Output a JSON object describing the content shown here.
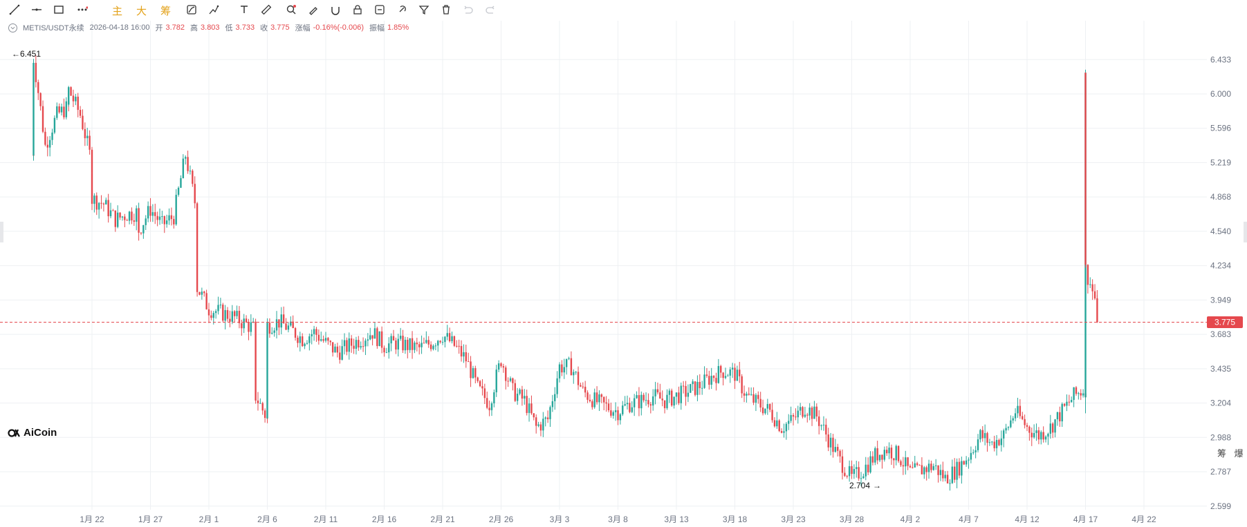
{
  "toolbar": {
    "text_buttons": [
      "主",
      "大",
      "筹"
    ]
  },
  "info": {
    "symbol": "METIS/USDT永续",
    "datetime": "2026-04-18 16:00",
    "open_label": "开",
    "open": "3.782",
    "high_label": "高",
    "high": "3.803",
    "low_label": "低",
    "low": "3.733",
    "close_label": "收",
    "close": "3.775",
    "change_label": "涨幅",
    "change": "-0.16%(-0.006)",
    "amp_label": "振幅",
    "amp": "1.85%"
  },
  "colors": {
    "up": "#26a69a",
    "down": "#e5484d",
    "price_line": "#e5484d",
    "grid": "#eef0f3"
  },
  "logo": {
    "text": "AiCoin"
  },
  "bottom_right": "筹 爆",
  "chart_data": {
    "type": "candlestick",
    "symbol": "METIS/USDT永续",
    "y_ticks": [
      6.433,
      6.0,
      5.596,
      5.219,
      4.868,
      4.54,
      4.234,
      3.949,
      3.683,
      3.435,
      3.204,
      2.988,
      2.787,
      2.599
    ],
    "y_tick_labels": [
      "6.433",
      "6.000",
      "5.596",
      "5.219",
      "4.868",
      "4.540",
      "4.234",
      "3.949",
      "3.683",
      "3.435",
      "3.204",
      "2.988",
      "2.787",
      "2.599"
    ],
    "y_scale": "log",
    "ylim": [
      2.58,
      6.6
    ],
    "x_tick_labels": [
      "1月 22",
      "1月 27",
      "2月 1",
      "2月 6",
      "2月 11",
      "2月 16",
      "2月 21",
      "2月 26",
      "3月 3",
      "3月 8",
      "3月 13",
      "3月 18",
      "3月 23",
      "3月 28",
      "4月 2",
      "4月 7",
      "4月 12",
      "4月 17",
      "4月 22"
    ],
    "last_price": "3.775",
    "max_label": "6.451",
    "min_label": "2.704",
    "path": [
      [
        "01-17",
        5.3
      ],
      [
        "01-17",
        6.45
      ],
      [
        "01-18",
        5.4
      ],
      [
        "01-19",
        5.75
      ],
      [
        "01-20",
        5.85
      ],
      [
        "01-20",
        6.05
      ],
      [
        "01-21",
        5.75
      ],
      [
        "01-22",
        5.2
      ],
      [
        "01-22",
        4.85
      ],
      [
        "01-23",
        4.8
      ],
      [
        "01-24",
        4.65
      ],
      [
        "01-25",
        4.7
      ],
      [
        "01-26",
        4.72
      ],
      [
        "01-26",
        4.55
      ],
      [
        "01-27",
        4.75
      ],
      [
        "01-28",
        4.6
      ],
      [
        "01-29",
        4.68
      ],
      [
        "01-30",
        5.3
      ],
      [
        "01-31",
        4.7
      ],
      [
        "01-31",
        4.05
      ],
      [
        "02-01",
        3.88
      ],
      [
        "02-02",
        3.85
      ],
      [
        "02-03",
        3.82
      ],
      [
        "02-05",
        3.72
      ],
      [
        "02-05",
        3.25
      ],
      [
        "02-06",
        3.1
      ],
      [
        "02-06",
        3.75
      ],
      [
        "02-07",
        3.78
      ],
      [
        "02-08",
        3.72
      ],
      [
        "02-09",
        3.65
      ],
      [
        "02-10",
        3.7
      ],
      [
        "02-11",
        3.62
      ],
      [
        "02-12",
        3.55
      ],
      [
        "02-13",
        3.6
      ],
      [
        "02-14",
        3.65
      ],
      [
        "02-15",
        3.7
      ],
      [
        "02-16",
        3.6
      ],
      [
        "02-17",
        3.62
      ],
      [
        "02-18",
        3.6
      ],
      [
        "02-19",
        3.58
      ],
      [
        "02-20",
        3.62
      ],
      [
        "02-21",
        3.68
      ],
      [
        "02-22",
        3.6
      ],
      [
        "02-23",
        3.5
      ],
      [
        "02-24",
        3.3
      ],
      [
        "02-25",
        3.2
      ],
      [
        "02-26",
        3.5
      ],
      [
        "02-27",
        3.28
      ],
      [
        "02-28",
        3.22
      ],
      [
        "03-01",
        3.05
      ],
      [
        "03-02",
        3.1
      ],
      [
        "03-03",
        3.45
      ],
      [
        "03-04",
        3.45
      ],
      [
        "03-05",
        3.28
      ],
      [
        "03-06",
        3.22
      ],
      [
        "03-07",
        3.18
      ],
      [
        "03-08",
        3.15
      ],
      [
        "03-09",
        3.2
      ],
      [
        "03-10",
        3.22
      ],
      [
        "03-11",
        3.25
      ],
      [
        "03-12",
        3.22
      ],
      [
        "03-13",
        3.25
      ],
      [
        "03-14",
        3.28
      ],
      [
        "03-15",
        3.32
      ],
      [
        "03-16",
        3.38
      ],
      [
        "03-17",
        3.42
      ],
      [
        "03-18",
        3.4
      ],
      [
        "03-19",
        3.25
      ],
      [
        "03-20",
        3.2
      ],
      [
        "03-21",
        3.15
      ],
      [
        "03-22",
        3.05
      ],
      [
        "03-23",
        3.1
      ],
      [
        "03-24",
        3.18
      ],
      [
        "03-25",
        3.12
      ],
      [
        "03-26",
        2.98
      ],
      [
        "03-27",
        2.85
      ],
      [
        "03-28",
        2.75
      ],
      [
        "03-29",
        2.8
      ],
      [
        "03-30",
        2.88
      ],
      [
        "03-31",
        2.92
      ],
      [
        "04-01",
        2.88
      ],
      [
        "04-02",
        2.78
      ],
      [
        "04-03",
        2.8
      ],
      [
        "04-04",
        2.82
      ],
      [
        "04-05",
        2.75
      ],
      [
        "04-06",
        2.8
      ],
      [
        "04-07",
        2.88
      ],
      [
        "04-08",
        3.0
      ],
      [
        "04-09",
        2.95
      ],
      [
        "04-10",
        3.0
      ],
      [
        "04-11",
        3.15
      ],
      [
        "04-12",
        3.05
      ],
      [
        "04-13",
        3.0
      ],
      [
        "04-14",
        3.05
      ],
      [
        "04-15",
        3.15
      ],
      [
        "04-16",
        3.25
      ],
      [
        "04-17",
        3.3
      ],
      [
        "04-17",
        6.2
      ],
      [
        "04-17",
        5.0
      ],
      [
        "04-17",
        4.6
      ],
      [
        "04-17",
        4.2
      ],
      [
        "04-18",
        3.9
      ],
      [
        "04-18",
        3.775
      ]
    ]
  }
}
